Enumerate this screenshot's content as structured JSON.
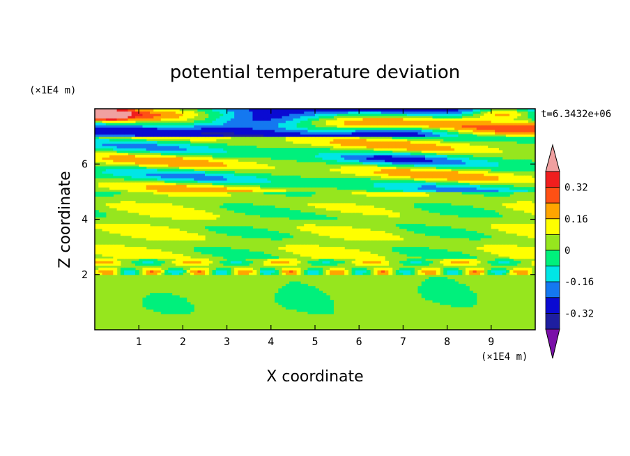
{
  "chart_data": {
    "type": "heatmap",
    "title": "potential temperature deviation",
    "xlabel": "X coordinate",
    "ylabel": "Z coordinate",
    "x_unit": "(×1E4 m)",
    "y_unit": "(×1E4 m)",
    "time_label": "t=6.3432e+06",
    "xlim": [
      0,
      10
    ],
    "ylim": [
      0,
      8
    ],
    "x_ticks": [
      1,
      2,
      3,
      4,
      5,
      6,
      7,
      8,
      9
    ],
    "y_ticks": [
      2,
      4,
      6
    ],
    "colorbar": {
      "levels": [
        -0.4,
        -0.32,
        -0.24,
        -0.16,
        -0.08,
        0,
        0.08,
        0.16,
        0.24,
        0.32,
        0.4
      ],
      "tick_labels": [
        "0.32",
        "0.16",
        "0",
        "-0.16",
        "-0.32"
      ],
      "tick_values": [
        0.32,
        0.16,
        0,
        -0.16,
        -0.32
      ],
      "colors": [
        "#7a0fa8",
        "#1e1ea0",
        "#0a0ad2",
        "#1478f0",
        "#00e6e6",
        "#00f07c",
        "#96e61e",
        "#ffff00",
        "#ffa500",
        "#ff5014",
        "#f01e1e",
        "#f0a0a0"
      ],
      "extend": "both"
    },
    "bands": [
      {
        "z_range": [
          0,
          2.0
        ],
        "dominant": "#96e61e",
        "secondary": "#00f07c",
        "description_values": [
          0,
          0.08
        ]
      },
      {
        "z_range": [
          2.0,
          2.6
        ],
        "dominant": "#96e61e",
        "accents": [
          "#ffa500",
          "#ff5014",
          "#1478f0",
          "#0a0ad2"
        ]
      },
      {
        "z_range": [
          2.6,
          5.0
        ],
        "dominant": "#96e61e",
        "accents": [
          "#00f07c",
          "#ffff00",
          "#00e6e6"
        ]
      },
      {
        "z_range": [
          5.0,
          7.0
        ],
        "dominant": "#00f07c",
        "accents": [
          "#ffff00",
          "#ffa500",
          "#1478f0",
          "#0a0ad2",
          "#00e6e6"
        ]
      },
      {
        "z_range": [
          7.0,
          8.0
        ],
        "dominant": "#ff5014",
        "accents": [
          "#7a0fa8",
          "#1e1ea0",
          "#0a0ad2",
          "#f0a0a0",
          "#f01e1e"
        ]
      }
    ]
  }
}
